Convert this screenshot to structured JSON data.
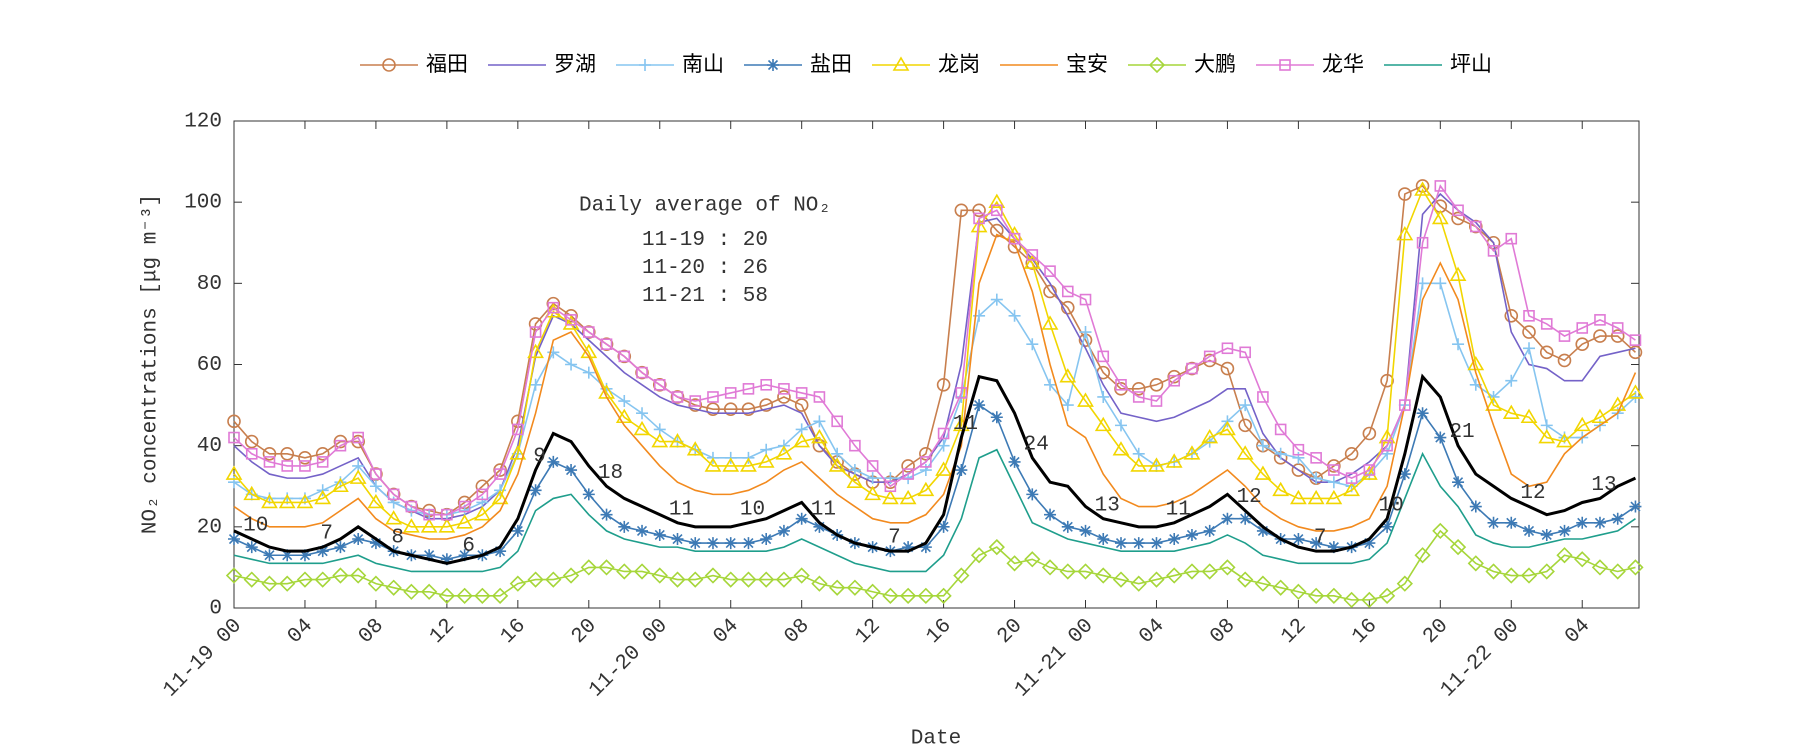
{
  "chart_data": {
    "type": "line",
    "y_label": "NO₂ concentrations [μg m⁻³]",
    "x_label": "Date",
    "categories": [
      "11-19 00",
      null,
      null,
      null,
      "04",
      null,
      null,
      null,
      "08",
      null,
      null,
      null,
      "12",
      null,
      null,
      null,
      "16",
      null,
      null,
      null,
      "20",
      null,
      null,
      null,
      "11-20 00",
      null,
      null,
      null,
      "04",
      null,
      null,
      null,
      "08",
      null,
      null,
      null,
      "12",
      null,
      null,
      null,
      "16",
      null,
      null,
      null,
      "20",
      null,
      null,
      null,
      "11-21 00",
      null,
      null,
      null,
      "04",
      null,
      null,
      null,
      "08",
      null,
      null,
      null,
      "12",
      null,
      null,
      null,
      "16",
      null,
      null,
      null,
      "20",
      null,
      null,
      null,
      "11-22 00",
      null,
      null,
      null,
      "04",
      null,
      null,
      null
    ],
    "ylim": [
      0,
      120
    ],
    "yticks": [
      0,
      20,
      40,
      60,
      80,
      100,
      120
    ],
    "series": [
      {
        "name": "福田",
        "color": "#c87f4e",
        "marker": "circle",
        "values": [
          46,
          41,
          38,
          38,
          37,
          38,
          41,
          41,
          33,
          28,
          25,
          24,
          23,
          26,
          30,
          34,
          46,
          70,
          75,
          72,
          68,
          65,
          62,
          58,
          55,
          52,
          50,
          49,
          49,
          49,
          50,
          52,
          50,
          40,
          36,
          33,
          31,
          31,
          35,
          38,
          55,
          98,
          98,
          93,
          89,
          85,
          78,
          74,
          66,
          58,
          54,
          54,
          55,
          57,
          59,
          61,
          59,
          45,
          40,
          37,
          34,
          32,
          35,
          38,
          43,
          56,
          102,
          104,
          99,
          96,
          94,
          90,
          72,
          68,
          63,
          61,
          65,
          67,
          67,
          63
        ]
      },
      {
        "name": "罗湖",
        "color": "#7462c8",
        "marker": null,
        "values": [
          40,
          36,
          33,
          32,
          32,
          33,
          35,
          37,
          30,
          26,
          24,
          22,
          22,
          23,
          25,
          29,
          40,
          62,
          72,
          70,
          66,
          62,
          58,
          55,
          52,
          50,
          49,
          48,
          48,
          48,
          49,
          50,
          48,
          40,
          35,
          33,
          31,
          31,
          33,
          36,
          42,
          60,
          95,
          96,
          91,
          86,
          80,
          72,
          64,
          55,
          48,
          47,
          46,
          47,
          49,
          51,
          54,
          54,
          43,
          37,
          34,
          31,
          31,
          33,
          36,
          40,
          50,
          97,
          102,
          98,
          95,
          90,
          68,
          60,
          59,
          56,
          56,
          62,
          63,
          64
        ]
      },
      {
        "name": "南山",
        "color": "#86c5f0",
        "marker": "plus",
        "values": [
          31,
          28,
          27,
          27,
          27,
          29,
          31,
          35,
          30,
          26,
          24,
          23,
          23,
          24,
          26,
          29,
          38,
          55,
          63,
          60,
          58,
          54,
          51,
          48,
          44,
          41,
          39,
          37,
          37,
          37,
          39,
          40,
          44,
          46,
          38,
          34,
          32,
          32,
          32,
          34,
          40,
          52,
          72,
          76,
          72,
          65,
          55,
          50,
          68,
          52,
          45,
          38,
          35,
          36,
          38,
          41,
          46,
          50,
          40,
          38,
          37,
          32,
          31,
          30,
          33,
          38,
          50,
          80,
          80,
          65,
          55,
          52,
          56,
          64,
          45,
          42,
          42,
          45,
          48,
          52
        ]
      },
      {
        "name": "盐田",
        "color": "#3d7ab5",
        "marker": "asterisk",
        "values": [
          17,
          15,
          13,
          13,
          13,
          14,
          15,
          17,
          16,
          14,
          13,
          13,
          12,
          13,
          13,
          14,
          19,
          29,
          36,
          34,
          28,
          23,
          20,
          19,
          18,
          17,
          16,
          16,
          16,
          16,
          17,
          19,
          22,
          20,
          18,
          16,
          15,
          14,
          15,
          15,
          20,
          34,
          50,
          47,
          36,
          28,
          23,
          20,
          19,
          17,
          16,
          16,
          16,
          17,
          18,
          19,
          22,
          22,
          19,
          17,
          17,
          16,
          15,
          15,
          16,
          20,
          33,
          48,
          42,
          31,
          25,
          21,
          21,
          19,
          18,
          19,
          21,
          21,
          22,
          25
        ]
      },
      {
        "name": "龙岗",
        "color": "#f2d600",
        "marker": "triangle",
        "values": [
          33,
          28,
          26,
          26,
          26,
          27,
          30,
          32,
          26,
          22,
          20,
          20,
          20,
          21,
          23,
          27,
          38,
          63,
          73,
          70,
          63,
          53,
          47,
          44,
          41,
          41,
          39,
          35,
          35,
          35,
          36,
          38,
          41,
          42,
          35,
          31,
          28,
          27,
          27,
          29,
          34,
          45,
          94,
          100,
          92,
          85,
          70,
          57,
          51,
          45,
          39,
          35,
          35,
          36,
          38,
          42,
          44,
          38,
          33,
          29,
          27,
          27,
          27,
          29,
          33,
          42,
          92,
          103,
          96,
          82,
          60,
          50,
          48,
          47,
          42,
          41,
          45,
          47,
          50,
          53
        ]
      },
      {
        "name": "宝安",
        "color": "#f28a1e",
        "marker": null,
        "values": [
          25,
          22,
          20,
          20,
          20,
          21,
          24,
          27,
          22,
          19,
          18,
          17,
          17,
          18,
          20,
          24,
          33,
          48,
          66,
          68,
          62,
          52,
          45,
          40,
          35,
          31,
          29,
          28,
          28,
          29,
          31,
          34,
          36,
          32,
          28,
          25,
          22,
          21,
          21,
          23,
          28,
          40,
          80,
          92,
          90,
          78,
          60,
          45,
          42,
          33,
          27,
          25,
          25,
          26,
          28,
          31,
          34,
          30,
          25,
          22,
          20,
          19,
          19,
          20,
          22,
          30,
          50,
          76,
          85,
          76,
          58,
          45,
          33,
          30,
          31,
          38,
          42,
          45,
          48,
          58
        ]
      },
      {
        "name": "大鹏",
        "color": "#a6d63a",
        "marker": "diamond",
        "values": [
          8,
          7,
          6,
          6,
          7,
          7,
          8,
          8,
          6,
          5,
          4,
          4,
          3,
          3,
          3,
          3,
          6,
          7,
          7,
          8,
          10,
          10,
          9,
          9,
          8,
          7,
          7,
          8,
          7,
          7,
          7,
          7,
          8,
          6,
          5,
          5,
          4,
          3,
          3,
          3,
          3,
          8,
          13,
          15,
          11,
          12,
          10,
          9,
          9,
          8,
          7,
          6,
          7,
          8,
          9,
          9,
          10,
          7,
          6,
          5,
          4,
          3,
          3,
          2,
          2,
          3,
          6,
          13,
          19,
          15,
          11,
          9,
          8,
          8,
          9,
          13,
          12,
          10,
          9,
          10
        ]
      },
      {
        "name": "龙华",
        "color": "#e07ad6",
        "marker": "square",
        "values": [
          42,
          38,
          36,
          35,
          35,
          36,
          40,
          42,
          33,
          28,
          25,
          23,
          23,
          25,
          28,
          33,
          44,
          68,
          74,
          71,
          68,
          65,
          62,
          58,
          55,
          52,
          51,
          52,
          53,
          54,
          55,
          54,
          53,
          52,
          46,
          40,
          35,
          30,
          33,
          36,
          43,
          53,
          96,
          98,
          91,
          87,
          83,
          78,
          76,
          62,
          55,
          52,
          51,
          56,
          59,
          62,
          64,
          63,
          52,
          44,
          39,
          37,
          34,
          32,
          34,
          40,
          50,
          90,
          104,
          98,
          94,
          88,
          91,
          72,
          70,
          67,
          69,
          71,
          69,
          66
        ]
      },
      {
        "name": "坪山",
        "color": "#1f9e8c",
        "marker": null,
        "values": [
          13,
          12,
          11,
          11,
          11,
          11,
          12,
          13,
          11,
          10,
          9,
          9,
          9,
          9,
          9,
          10,
          14,
          24,
          27,
          28,
          23,
          19,
          17,
          16,
          15,
          15,
          14,
          14,
          14,
          14,
          14,
          15,
          17,
          15,
          13,
          11,
          10,
          9,
          9,
          9,
          13,
          22,
          37,
          39,
          30,
          21,
          19,
          17,
          16,
          15,
          14,
          14,
          14,
          14,
          15,
          16,
          18,
          16,
          13,
          12,
          11,
          11,
          11,
          11,
          12,
          16,
          27,
          38,
          30,
          25,
          18,
          16,
          15,
          15,
          16,
          17,
          17,
          18,
          19,
          22
        ]
      },
      {
        "color": "#000000",
        "marker": null,
        "width": 3,
        "values": [
          19,
          17,
          15,
          14,
          14,
          15,
          17,
          20,
          17,
          14,
          13,
          12,
          11,
          12,
          13,
          15,
          22,
          34,
          43,
          41,
          35,
          30,
          27,
          25,
          23,
          21,
          20,
          20,
          20,
          21,
          22,
          24,
          26,
          21,
          18,
          16,
          15,
          14,
          14,
          16,
          23,
          42,
          57,
          56,
          48,
          37,
          31,
          30,
          25,
          22,
          21,
          20,
          20,
          21,
          23,
          25,
          28,
          24,
          20,
          17,
          15,
          14,
          14,
          15,
          17,
          22,
          38,
          57,
          52,
          40,
          33,
          30,
          27,
          25,
          23,
          24,
          26,
          27,
          30,
          32
        ]
      }
    ],
    "annotations": [
      "10",
      "7",
      "8",
      "6",
      "9",
      "18",
      "11",
      "10",
      "11",
      "7",
      "11",
      "24",
      "13",
      "11",
      "12",
      "7",
      "10",
      "21",
      "12",
      "13"
    ],
    "daily_average": {
      "title": "Daily average of NO₂",
      "rows": [
        {
          "date": "11-19",
          "value": 20
        },
        {
          "date": "11-20",
          "value": 26
        },
        {
          "date": "11-21",
          "value": 58
        }
      ]
    }
  }
}
